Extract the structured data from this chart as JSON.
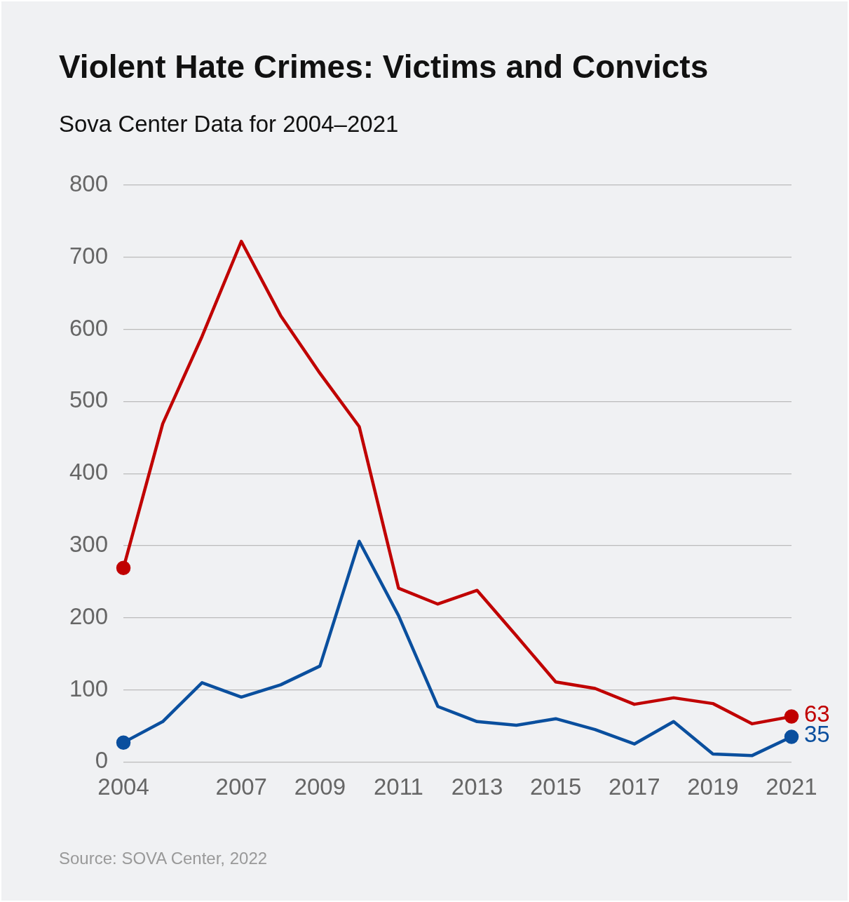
{
  "chart_data": {
    "type": "line",
    "title": "Violent Hate Crimes: Victims and Convicts",
    "subtitle": "Sova Center Data for 2004–2021",
    "annotations": [
      "Source: SOVA Center, 2022"
    ],
    "x": [
      2004,
      2005,
      2006,
      2007,
      2008,
      2009,
      2010,
      2011,
      2012,
      2013,
      2014,
      2015,
      2016,
      2017,
      2018,
      2019,
      2020,
      2021
    ],
    "series": [
      {
        "color": "#c00000",
        "values": [
          269,
          469,
          590,
          722,
          619,
          539,
          465,
          241,
          219,
          238,
          175,
          111,
          102,
          80,
          89,
          81,
          53,
          63
        ],
        "value_labels": [
          null,
          null,
          null,
          null,
          null,
          null,
          null,
          null,
          null,
          null,
          null,
          null,
          null,
          null,
          null,
          null,
          null,
          "63"
        ]
      },
      {
        "color": "#0a4f9e",
        "values": [
          27,
          56,
          110,
          90,
          107,
          133,
          306,
          203,
          77,
          56,
          51,
          60,
          45,
          25,
          56,
          11,
          9,
          35
        ],
        "value_labels": [
          null,
          null,
          null,
          null,
          null,
          null,
          null,
          null,
          null,
          null,
          null,
          null,
          null,
          null,
          null,
          null,
          null,
          "35"
        ]
      }
    ],
    "xlim": [
      2004,
      2021
    ],
    "xticks": [
      2004,
      2007,
      2009,
      2011,
      2013,
      2015,
      2017,
      2019,
      2021
    ],
    "ylim": [
      0,
      800
    ],
    "yticks": [
      0,
      100,
      200,
      300,
      400,
      500,
      600,
      700,
      800
    ],
    "grid": "y",
    "legend": false,
    "line_style": "solid"
  }
}
